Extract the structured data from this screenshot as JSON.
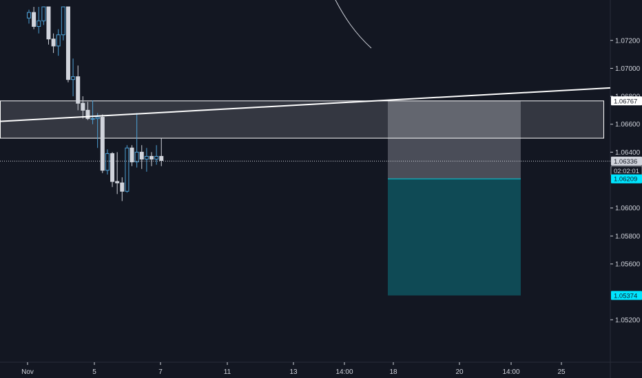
{
  "chart_data": {
    "type": "candlestick",
    "title": "",
    "xlabel": "",
    "ylabel": "",
    "ylim": [
      1.0498,
      1.0744
    ],
    "y_ticks": [
      "1.07200",
      "1.07000",
      "1.06800",
      "1.06600",
      "1.06400",
      "1.06000",
      "1.05800",
      "1.05600",
      "1.05200"
    ],
    "x_ticks": [
      "Nov",
      "5",
      "7",
      "11",
      "13",
      "14:00",
      "18",
      "20",
      "14:00",
      "25"
    ],
    "price_tags": {
      "zone_top": "1.06767",
      "current": "1.06336",
      "countdown": "02:02:01",
      "entry": "1.06209",
      "target": "1.05374"
    },
    "candles": [
      {
        "o": 1.0736,
        "h": 1.0742,
        "l": 1.0732,
        "c": 1.074
      },
      {
        "o": 1.074,
        "h": 1.0744,
        "l": 1.0728,
        "c": 1.073
      },
      {
        "o": 1.073,
        "h": 1.0744,
        "l": 1.0725,
        "c": 1.0734
      },
      {
        "o": 1.0734,
        "h": 1.0744,
        "l": 1.0731,
        "c": 1.0744
      },
      {
        "o": 1.0744,
        "h": 1.0744,
        "l": 1.0717,
        "c": 1.0721
      },
      {
        "o": 1.0721,
        "h": 1.0725,
        "l": 1.0711,
        "c": 1.0716
      },
      {
        "o": 1.0716,
        "h": 1.0728,
        "l": 1.0709,
        "c": 1.0724
      },
      {
        "o": 1.0724,
        "h": 1.0744,
        "l": 1.072,
        "c": 1.0744
      },
      {
        "o": 1.0744,
        "h": 1.0744,
        "l": 1.069,
        "c": 1.0692
      },
      {
        "o": 1.0692,
        "h": 1.0707,
        "l": 1.068,
        "c": 1.0694
      },
      {
        "o": 1.0694,
        "h": 1.0702,
        "l": 1.067,
        "c": 1.0675
      },
      {
        "o": 1.0675,
        "h": 1.068,
        "l": 1.0664,
        "c": 1.067
      },
      {
        "o": 1.067,
        "h": 1.0676,
        "l": 1.0663,
        "c": 1.0664
      },
      {
        "o": 1.0664,
        "h": 1.0677,
        "l": 1.066,
        "c": 1.0664
      },
      {
        "o": 1.0664,
        "h": 1.0668,
        "l": 1.0643,
        "c": 1.0665
      },
      {
        "o": 1.0665,
        "h": 1.0667,
        "l": 1.0625,
        "c": 1.0627
      },
      {
        "o": 1.0627,
        "h": 1.0642,
        "l": 1.0624,
        "c": 1.0639
      },
      {
        "o": 1.0639,
        "h": 1.064,
        "l": 1.0615,
        "c": 1.0619
      },
      {
        "o": 1.0619,
        "h": 1.064,
        "l": 1.061,
        "c": 1.0618
      },
      {
        "o": 1.0618,
        "h": 1.0622,
        "l": 1.0605,
        "c": 1.0612
      },
      {
        "o": 1.0612,
        "h": 1.0645,
        "l": 1.0611,
        "c": 1.0643
      },
      {
        "o": 1.0643,
        "h": 1.0645,
        "l": 1.063,
        "c": 1.0633
      },
      {
        "o": 1.0633,
        "h": 1.0668,
        "l": 1.0629,
        "c": 1.064
      },
      {
        "o": 1.064,
        "h": 1.0645,
        "l": 1.0628,
        "c": 1.0635
      },
      {
        "o": 1.0635,
        "h": 1.0643,
        "l": 1.0626,
        "c": 1.0637
      },
      {
        "o": 1.0637,
        "h": 1.064,
        "l": 1.063,
        "c": 1.0635
      },
      {
        "o": 1.0635,
        "h": 1.0645,
        "l": 1.0631,
        "c": 1.0637
      },
      {
        "o": 1.0637,
        "h": 1.065,
        "l": 1.063,
        "c": 1.0634
      }
    ],
    "zone": {
      "top": 1.06767,
      "bottom": 1.065
    },
    "position": {
      "stop": 1.06767,
      "entry": 1.06209,
      "target": 1.05374
    },
    "trendline": [
      {
        "x_frac": 0.0,
        "y": 1.0662
      },
      {
        "x_frac": 1.0,
        "y": 1.0686
      }
    ],
    "colors": {
      "background": "#131722",
      "up": "#4ea1d6",
      "down": "#d1d4dc",
      "tag_bg": "#ffffff",
      "tag_text": "#131722",
      "entry_tag_bg": "#00e5ff",
      "target_tag_bg": "#00e5ff",
      "countdown_tag_bg": "#ffffff",
      "stop_fill": "#5d606b",
      "profit_fill": "#0f4a55",
      "entry_line": "#00d0e0",
      "grid": "#1f2330",
      "axis_text": "#d1d4dc"
    },
    "grid": false,
    "legend": "none"
  }
}
